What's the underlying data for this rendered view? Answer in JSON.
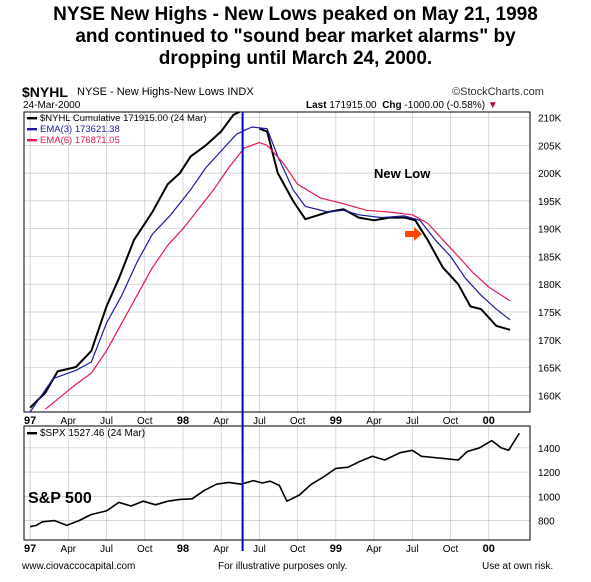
{
  "headline": [
    "NYSE New Highs - New Lows peaked on May 21, 1998",
    "and continued to \"sound bear market alarms\" by",
    "dropping until March 24, 2000."
  ],
  "header": {
    "symbol": "$NYHL",
    "name": "NYSE - New Highs-New Lows INDX",
    "date": "24-Mar-2000",
    "brand": "©StockCharts.com",
    "last_label": "Last",
    "last_value": "171915.00",
    "chg_label": "Chg",
    "chg_value": "-1000.00 (-0.58%)",
    "chg_arrow": "▼"
  },
  "footer": {
    "left": "www.ciovaccocapital.com",
    "center": "For illustrative purposes only.",
    "right": "Use at own risk."
  },
  "colors": {
    "nyhl": "#000000",
    "ema3": "#1a1aa6",
    "ema6": "#e8174f",
    "marker": "#0000cc",
    "arrow": "#ff4500",
    "grid": "#c8c8c8"
  },
  "chart_data": [
    {
      "type": "line",
      "legend": [
        {
          "label": "$NYHL Cumulative 171915.00 (24 Mar)",
          "color": "#000000"
        },
        {
          "label": "EMA(3) 173621.38",
          "color": "#1a1aa6"
        },
        {
          "label": "EMA(6) 176871.05",
          "color": "#e8174f"
        }
      ],
      "x_ticks": [
        "97",
        "Apr",
        "Jul",
        "Oct",
        "98",
        "Apr",
        "Jul",
        "Oct",
        "99",
        "Apr",
        "Jul",
        "Oct",
        "00"
      ],
      "y_ticks": [
        "160K",
        "165K",
        "170K",
        "175K",
        "180K",
        "185K",
        "190K",
        "195K",
        "200K",
        "205K",
        "210K"
      ],
      "ylim": [
        157000,
        211000
      ],
      "grid": true,
      "annotation": "New Low",
      "series": [
        {
          "name": "$NYHL Cumulative",
          "points": [
            [
              1997.0,
              157800
            ],
            [
              1997.1,
              160500
            ],
            [
              1997.18,
              164300
            ],
            [
              1997.3,
              165100
            ],
            [
              1997.4,
              168000
            ],
            [
              1997.5,
              176000
            ],
            [
              1997.58,
              181000
            ],
            [
              1997.68,
              188000
            ],
            [
              1997.8,
              193000
            ],
            [
              1997.9,
              198000
            ],
            [
              1997.98,
              200000
            ],
            [
              1998.05,
              203000
            ],
            [
              1998.15,
              205000
            ],
            [
              1998.25,
              207500
            ],
            [
              1998.33,
              210500
            ],
            [
              1998.37,
              211000
            ]
          ]
        },
        {
          "name": "$NYHL Cumulative",
          "points": [
            [
              1998.5,
              208000
            ],
            [
              1998.55,
              207500
            ],
            [
              1998.62,
              200000
            ],
            [
              1998.72,
              195000
            ],
            [
              1998.8,
              191700
            ],
            [
              1998.95,
              193000
            ],
            [
              1999.05,
              193500
            ],
            [
              1999.15,
              192000
            ],
            [
              1999.25,
              191500
            ],
            [
              1999.35,
              192000
            ],
            [
              1999.45,
              192000
            ],
            [
              1999.52,
              191500
            ],
            [
              1999.6,
              188000
            ],
            [
              1999.7,
              183000
            ],
            [
              1999.8,
              180000
            ],
            [
              1999.88,
              176000
            ],
            [
              1999.95,
              175500
            ],
            [
              2000.05,
              172500
            ],
            [
              2000.14,
              171800
            ]
          ]
        },
        {
          "name": "EMA(3)",
          "points": [
            [
              1997.0,
              157000
            ],
            [
              1997.15,
              163000
            ],
            [
              1997.3,
              164500
            ],
            [
              1997.4,
              166000
            ],
            [
              1997.5,
              173000
            ],
            [
              1997.6,
              178000
            ],
            [
              1997.7,
              184000
            ],
            [
              1997.8,
              189000
            ],
            [
              1997.92,
              192500
            ],
            [
              1998.05,
              197000
            ],
            [
              1998.15,
              201000
            ],
            [
              1998.25,
              204000
            ],
            [
              1998.35,
              207000
            ],
            [
              1998.45,
              208300
            ],
            [
              1998.55,
              208000
            ],
            [
              1998.62,
              203000
            ],
            [
              1998.72,
              197000
            ],
            [
              1998.8,
              194000
            ],
            [
              1998.95,
              193000
            ],
            [
              1999.05,
              193300
            ],
            [
              1999.15,
              192500
            ],
            [
              1999.3,
              192000
            ],
            [
              1999.45,
              192300
            ],
            [
              1999.55,
              191500
            ],
            [
              1999.65,
              188000
            ],
            [
              1999.75,
              185000
            ],
            [
              1999.85,
              181000
            ],
            [
              1999.95,
              178000
            ],
            [
              2000.05,
              175500
            ],
            [
              2000.14,
              173600
            ]
          ]
        },
        {
          "name": "EMA(6)",
          "points": [
            [
              1997.1,
              157500
            ],
            [
              1997.3,
              162000
            ],
            [
              1997.4,
              164000
            ],
            [
              1997.5,
              168000
            ],
            [
              1997.6,
              173000
            ],
            [
              1997.7,
              178000
            ],
            [
              1997.8,
              183000
            ],
            [
              1997.9,
              187000
            ],
            [
              1998.0,
              190000
            ],
            [
              1998.1,
              193500
            ],
            [
              1998.2,
              197000
            ],
            [
              1998.3,
              201000
            ],
            [
              1998.4,
              204500
            ],
            [
              1998.5,
              205500
            ],
            [
              1998.55,
              205000
            ],
            [
              1998.65,
              202000
            ],
            [
              1998.75,
              198000
            ],
            [
              1998.9,
              195500
            ],
            [
              1999.05,
              194500
            ],
            [
              1999.2,
              193300
            ],
            [
              1999.35,
              193000
            ],
            [
              1999.5,
              192500
            ],
            [
              1999.6,
              191000
            ],
            [
              1999.7,
              188000
            ],
            [
              1999.8,
              185000
            ],
            [
              1999.9,
              182000
            ],
            [
              2000.0,
              179500
            ],
            [
              2000.14,
              177000
            ]
          ]
        }
      ]
    },
    {
      "type": "line",
      "legend": [
        {
          "label": "$SPX 1527.46 (24 Mar)",
          "color": "#000000"
        }
      ],
      "label": "S&P 500",
      "x_ticks": [
        "97",
        "Apr",
        "Jul",
        "Oct",
        "98",
        "Apr",
        "Jul",
        "Oct",
        "99",
        "Apr",
        "Jul",
        "Oct",
        "00"
      ],
      "y_ticks": [
        "800",
        "1000",
        "1200",
        "1400"
      ],
      "ylim": [
        640,
        1580
      ],
      "grid": true,
      "series": [
        {
          "name": "$SPX",
          "points": [
            [
              1997.0,
              750
            ],
            [
              1997.04,
              760
            ],
            [
              1997.08,
              790
            ],
            [
              1997.16,
              800
            ],
            [
              1997.24,
              760
            ],
            [
              1997.32,
              800
            ],
            [
              1997.4,
              850
            ],
            [
              1997.5,
              880
            ],
            [
              1997.58,
              950
            ],
            [
              1997.66,
              920
            ],
            [
              1997.74,
              960
            ],
            [
              1997.82,
              930
            ],
            [
              1997.9,
              960
            ],
            [
              1997.98,
              975
            ],
            [
              1998.06,
              980
            ],
            [
              1998.14,
              1050
            ],
            [
              1998.22,
              1100
            ],
            [
              1998.3,
              1115
            ],
            [
              1998.38,
              1100
            ],
            [
              1998.46,
              1130
            ],
            [
              1998.52,
              1110
            ],
            [
              1998.57,
              1125
            ],
            [
              1998.63,
              1090
            ],
            [
              1998.68,
              960
            ],
            [
              1998.76,
              1010
            ],
            [
              1998.84,
              1100
            ],
            [
              1998.92,
              1160
            ],
            [
              1999.0,
              1230
            ],
            [
              1999.08,
              1240
            ],
            [
              1999.16,
              1290
            ],
            [
              1999.24,
              1330
            ],
            [
              1999.32,
              1300
            ],
            [
              1999.42,
              1360
            ],
            [
              1999.5,
              1380
            ],
            [
              1999.56,
              1330
            ],
            [
              1999.64,
              1320
            ],
            [
              1999.72,
              1310
            ],
            [
              1999.8,
              1300
            ],
            [
              1999.86,
              1370
            ],
            [
              1999.94,
              1400
            ],
            [
              2000.02,
              1460
            ],
            [
              2000.08,
              1400
            ],
            [
              2000.13,
              1380
            ],
            [
              2000.2,
              1520
            ]
          ]
        }
      ]
    }
  ],
  "marker_date": 1998.39
}
